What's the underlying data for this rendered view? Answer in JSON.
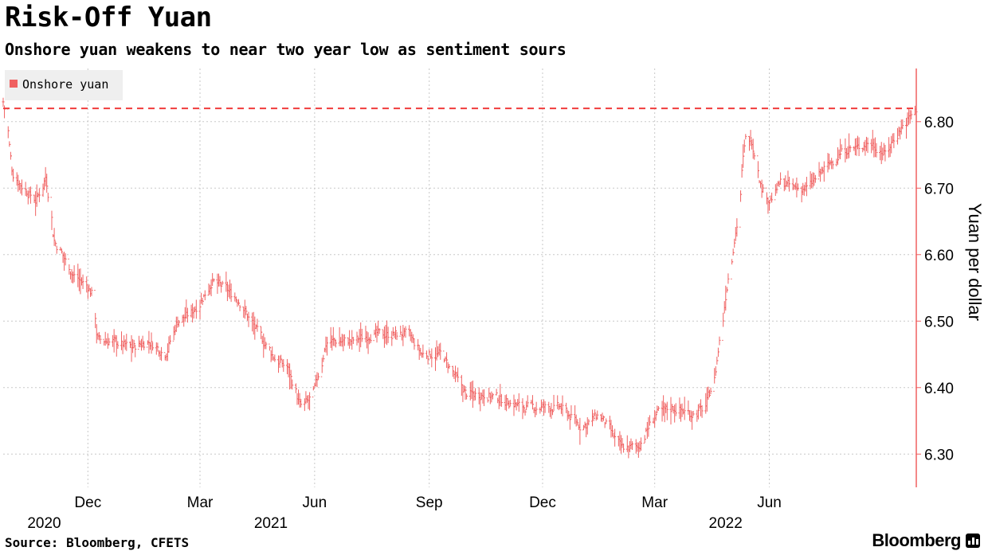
{
  "header": {
    "title": "Risk-Off Yuan",
    "subtitle": "Onshore yuan weakens to near two year low as sentiment sours"
  },
  "footer": {
    "source": "Source: Bloomberg, CFETS",
    "brand": "Bloomberg",
    "brand_icon": "bloomberg-terminal-icon"
  },
  "colors": {
    "series": "#f06060",
    "reference_line": "#f03c3c",
    "grid": "#c8c8c8",
    "axis": "#f06060",
    "legend_bg": "#efefef"
  },
  "chart_data": {
    "type": "bar",
    "bar_style": "high-low range",
    "title": "Risk-Off Yuan",
    "subtitle": "Onshore yuan weakens to near two year low as sentiment sours",
    "xlabel": "",
    "ylabel": "Yuan per dollar",
    "ylim": [
      6.25,
      6.88
    ],
    "yticks": [
      6.3,
      6.4,
      6.5,
      6.6,
      6.7,
      6.8
    ],
    "ytick_labels": [
      "6.30",
      "6.40",
      "6.50",
      "6.60",
      "6.70",
      "6.80"
    ],
    "xlim": [
      "2020-09-24",
      "2022-09-27"
    ],
    "xticks": [
      {
        "date": "2020-12-01",
        "label": "Dec",
        "year": "2020"
      },
      {
        "date": "2021-03-01",
        "label": "Mar",
        "year": ""
      },
      {
        "date": "2021-06-01",
        "label": "Jun",
        "year": "2021"
      },
      {
        "date": "2021-09-01",
        "label": "Sep",
        "year": ""
      },
      {
        "date": "2021-12-01",
        "label": "Dec",
        "year": ""
      },
      {
        "date": "2022-03-01",
        "label": "Mar",
        "year": ""
      },
      {
        "date": "2022-06-01",
        "label": "Jun",
        "year": "2022"
      }
    ],
    "grid": true,
    "legend": {
      "position": "top-left",
      "entries": [
        "Onshore yuan"
      ]
    },
    "reference_line": {
      "value": 6.82,
      "style": "dashed"
    },
    "series": [
      {
        "name": "Onshore yuan",
        "points": [
          [
            "2020-09-24",
            6.83
          ],
          [
            "2020-10-01",
            6.72
          ],
          [
            "2020-10-10",
            6.7
          ],
          [
            "2020-10-20",
            6.68
          ],
          [
            "2020-10-28",
            6.72
          ],
          [
            "2020-11-03",
            6.62
          ],
          [
            "2020-11-10",
            6.6
          ],
          [
            "2020-11-18",
            6.57
          ],
          [
            "2020-11-25",
            6.56
          ],
          [
            "2020-12-01",
            6.55
          ],
          [
            "2020-12-04",
            6.54
          ],
          [
            "2020-12-08",
            6.47
          ],
          [
            "2020-12-20",
            6.47
          ],
          [
            "2021-01-05",
            6.46
          ],
          [
            "2021-01-18",
            6.47
          ],
          [
            "2021-02-01",
            6.45
          ],
          [
            "2021-02-10",
            6.5
          ],
          [
            "2021-02-20",
            6.51
          ],
          [
            "2021-03-01",
            6.53
          ],
          [
            "2021-03-10",
            6.56
          ],
          [
            "2021-03-20",
            6.55
          ],
          [
            "2021-04-01",
            6.53
          ],
          [
            "2021-04-10",
            6.5
          ],
          [
            "2021-04-20",
            6.47
          ],
          [
            "2021-05-01",
            6.44
          ],
          [
            "2021-05-10",
            6.43
          ],
          [
            "2021-05-20",
            6.37
          ],
          [
            "2021-05-27",
            6.38
          ],
          [
            "2021-06-01",
            6.4
          ],
          [
            "2021-06-10",
            6.47
          ],
          [
            "2021-06-20",
            6.47
          ],
          [
            "2021-07-01",
            6.47
          ],
          [
            "2021-07-15",
            6.48
          ],
          [
            "2021-08-01",
            6.48
          ],
          [
            "2021-08-15",
            6.48
          ],
          [
            "2021-08-25",
            6.45
          ],
          [
            "2021-09-01",
            6.45
          ],
          [
            "2021-09-10",
            6.45
          ],
          [
            "2021-09-20",
            6.42
          ],
          [
            "2021-09-30",
            6.39
          ],
          [
            "2021-10-15",
            6.39
          ],
          [
            "2021-11-01",
            6.38
          ],
          [
            "2021-11-15",
            6.37
          ],
          [
            "2021-12-01",
            6.37
          ],
          [
            "2021-12-15",
            6.37
          ],
          [
            "2022-01-01",
            6.34
          ],
          [
            "2022-01-15",
            6.36
          ],
          [
            "2022-02-01",
            6.31
          ],
          [
            "2022-02-15",
            6.31
          ],
          [
            "2022-03-01",
            6.36
          ],
          [
            "2022-03-15",
            6.37
          ],
          [
            "2022-04-01",
            6.36
          ],
          [
            "2022-04-10",
            6.37
          ],
          [
            "2022-04-18",
            6.42
          ],
          [
            "2022-04-25",
            6.52
          ],
          [
            "2022-05-01",
            6.6
          ],
          [
            "2022-05-06",
            6.65
          ],
          [
            "2022-05-10",
            6.74
          ],
          [
            "2022-05-13",
            6.78
          ],
          [
            "2022-05-18",
            6.77
          ],
          [
            "2022-05-25",
            6.7
          ],
          [
            "2022-06-01",
            6.68
          ],
          [
            "2022-06-10",
            6.71
          ],
          [
            "2022-06-20",
            6.7
          ],
          [
            "2022-07-01",
            6.7
          ],
          [
            "2022-07-15",
            6.73
          ],
          [
            "2022-08-01",
            6.76
          ],
          [
            "2022-08-10",
            6.76
          ],
          [
            "2022-08-20",
            6.77
          ],
          [
            "2022-08-27",
            6.76
          ],
          [
            "2022-09-01",
            6.75
          ],
          [
            "2022-09-10",
            6.78
          ],
          [
            "2022-09-18",
            6.8
          ],
          [
            "2022-09-27",
            6.82
          ]
        ]
      }
    ]
  }
}
